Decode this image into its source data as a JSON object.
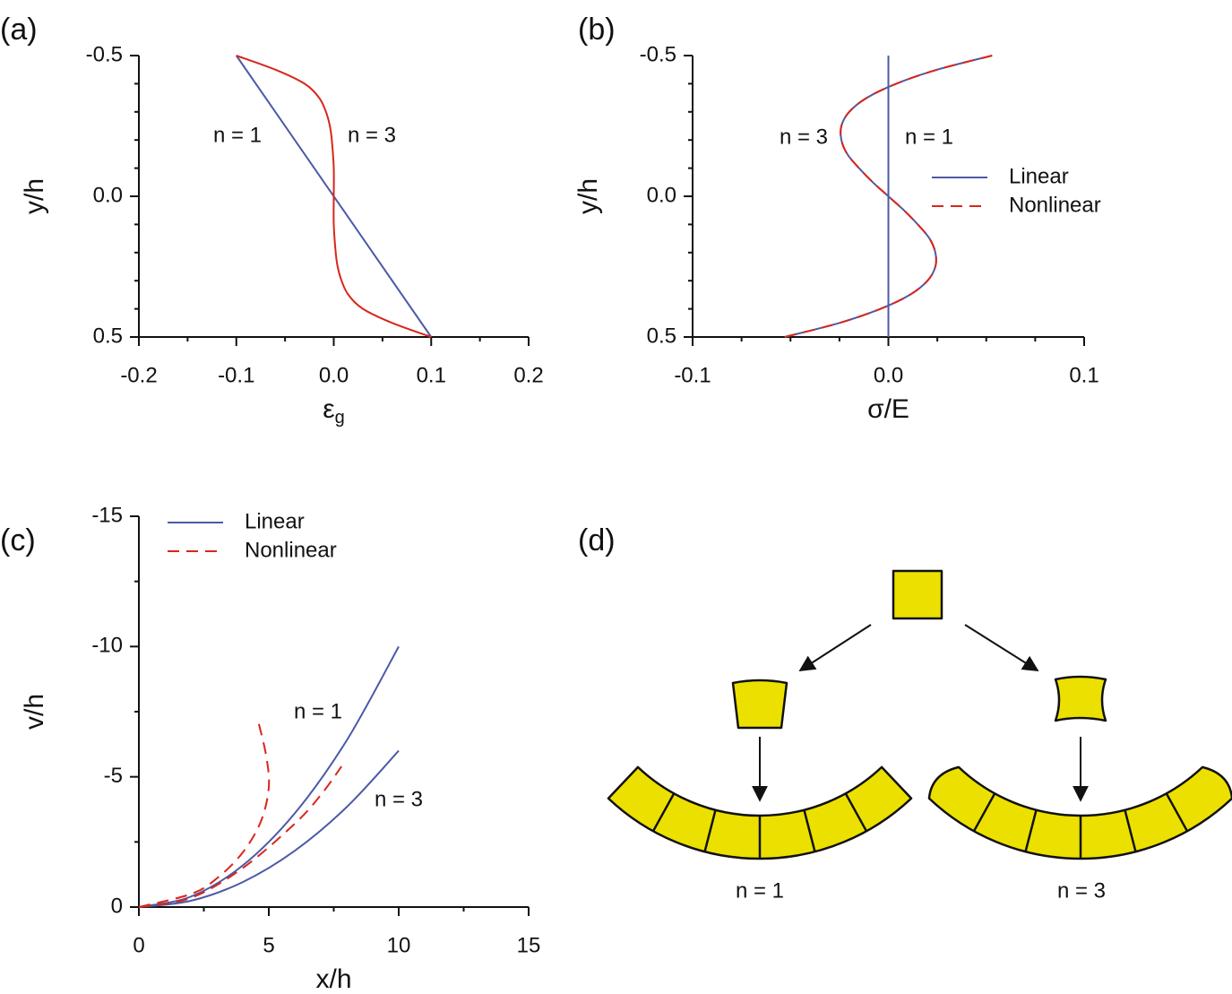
{
  "chart_data": [
    {
      "type": "line",
      "panel": "(a)",
      "xlabel": {
        "text": "ε",
        "sub": "g"
      },
      "ylabel": "y/h",
      "xlim": [
        -0.2,
        0.2
      ],
      "ylim": [
        0.5,
        -0.5
      ],
      "xticks": [
        -0.2,
        -0.1,
        {
          "value": 0,
          "label": "0.0"
        },
        0.1,
        0.2
      ],
      "yticks": [
        -0.5,
        {
          "value": 0,
          "label": "0.0"
        },
        0.5
      ],
      "xticks_minor": [
        -0.15,
        -0.05,
        0.05,
        0.15
      ],
      "yticks_minor": [
        -0.4,
        -0.3,
        -0.2,
        -0.1,
        0.1,
        0.2,
        0.3,
        0.4
      ],
      "series": [
        {
          "color": "#4c5aa6",
          "dashed": false,
          "lines": [
            {
              "x": [
                -0.1,
                0.1
              ],
              "y": [
                -0.5,
                0.5
              ]
            }
          ]
        },
        {
          "color": "#d9261c",
          "dashed": false,
          "lines": [
            {
              "x": [
                -0.1,
                -0.06,
                -0.03,
                -0.015,
                -0.008,
                -0.004,
                -0.002,
                0,
                0,
                0,
                0.002,
                0.004,
                0.008,
                0.015,
                0.03,
                0.06,
                0.1
              ],
              "y": [
                -0.5,
                -0.45,
                -0.4,
                -0.35,
                -0.3,
                -0.25,
                -0.2,
                -0.1,
                0,
                0.1,
                0.2,
                0.25,
                0.3,
                0.35,
                0.4,
                0.45,
                0.5
              ]
            }
          ]
        }
      ],
      "annotations": [
        "n = 1",
        "n = 3"
      ]
    },
    {
      "type": "line",
      "panel": "(b)",
      "xlabel": {
        "text": "σ/E"
      },
      "ylabel": "y/h",
      "xlim": [
        -0.1,
        0.1
      ],
      "ylim": [
        0.5,
        -0.5
      ],
      "xticks": [
        -0.1,
        {
          "value": 0,
          "label": "0.0"
        },
        0.1
      ],
      "yticks": [
        -0.5,
        {
          "value": 0,
          "label": "0.0"
        },
        0.5
      ],
      "xticks_minor": [
        -0.075,
        -0.05,
        -0.025,
        0.025,
        0.05,
        0.075
      ],
      "yticks_minor": [
        -0.4,
        -0.3,
        -0.2,
        -0.1,
        0.1,
        0.2,
        0.3,
        0.4
      ],
      "series": [
        {
          "name": "Linear",
          "color": "#4c5aa6",
          "dashed": false,
          "lines": [
            {
              "x": [
                0,
                0
              ],
              "y": [
                -0.5,
                0.5
              ]
            },
            {
              "x": [
                0.053,
                0.025,
                0.004,
                -0.011,
                -0.02,
                -0.024,
                -0.024,
                -0.021,
                -0.015,
                -0.008,
                0,
                0.008,
                0.015,
                0.021,
                0.024,
                0.024,
                0.02,
                0.011,
                -0.004,
                -0.025,
                -0.053
              ],
              "y": [
                -0.5,
                -0.45,
                -0.4,
                -0.35,
                -0.3,
                -0.25,
                -0.2,
                -0.15,
                -0.1,
                -0.05,
                0,
                0.05,
                0.1,
                0.15,
                0.2,
                0.25,
                0.3,
                0.35,
                0.4,
                0.45,
                0.5
              ]
            }
          ]
        },
        {
          "name": "Nonlinear",
          "color": "#d9261c",
          "dashed": true,
          "lines": [
            {
              "x": [
                0.053,
                0.025,
                0.004,
                -0.011,
                -0.02,
                -0.024,
                -0.024,
                -0.021,
                -0.015,
                -0.008,
                0,
                0.008,
                0.015,
                0.021,
                0.024,
                0.024,
                0.02,
                0.011,
                -0.004,
                -0.025,
                -0.053
              ],
              "y": [
                -0.5,
                -0.45,
                -0.4,
                -0.35,
                -0.3,
                -0.25,
                -0.2,
                -0.15,
                -0.1,
                -0.05,
                0,
                0.05,
                0.1,
                0.15,
                0.2,
                0.25,
                0.3,
                0.35,
                0.4,
                0.45,
                0.5
              ]
            }
          ]
        }
      ],
      "annotations": [
        "n = 3",
        "n = 1"
      ]
    },
    {
      "type": "line",
      "panel": "(c)",
      "xlabel": {
        "text": "x/h"
      },
      "ylabel": "v/h",
      "xlim": [
        0,
        15
      ],
      "ylim": [
        0,
        -15
      ],
      "xticks": [
        0,
        5,
        10,
        15
      ],
      "yticks": [
        -15,
        -10,
        -5,
        0
      ],
      "xticks_minor": [
        2.5,
        7.5,
        12.5
      ],
      "yticks_minor": [
        -12.5,
        -7.5,
        -2.5
      ],
      "series": [
        {
          "name": "Linear",
          "color": "#4c5aa6",
          "dashed": false,
          "lines": [
            {
              "x": [
                0,
                2,
                4,
                6,
                8,
                10
              ],
              "y": [
                0,
                -0.4,
                -1.6,
                -3.6,
                -6.4,
                -10
              ]
            },
            {
              "x": [
                0,
                2,
                4,
                6,
                8,
                10
              ],
              "y": [
                0,
                -0.24,
                -0.96,
                -2.16,
                -3.84,
                -6
              ]
            }
          ]
        },
        {
          "name": "Nonlinear",
          "color": "#d9261c",
          "dashed": true,
          "lines": [
            {
              "x": [
                0,
                2,
                3,
                4,
                4.7,
                5,
                4.9,
                4.6
              ],
              "y": [
                0,
                -0.5,
                -1.1,
                -2.1,
                -3.3,
                -4.6,
                -5.8,
                -7.1
              ]
            },
            {
              "x": [
                0,
                2,
                4,
                6,
                7,
                7.8
              ],
              "y": [
                0,
                -0.35,
                -1.5,
                -3.2,
                -4.3,
                -5.4
              ]
            }
          ]
        }
      ],
      "annotations": [
        "n = 1",
        "n = 3"
      ]
    }
  ],
  "diagram": {
    "label": "(d)",
    "captions": [
      "n = 1",
      "n = 3"
    ]
  }
}
